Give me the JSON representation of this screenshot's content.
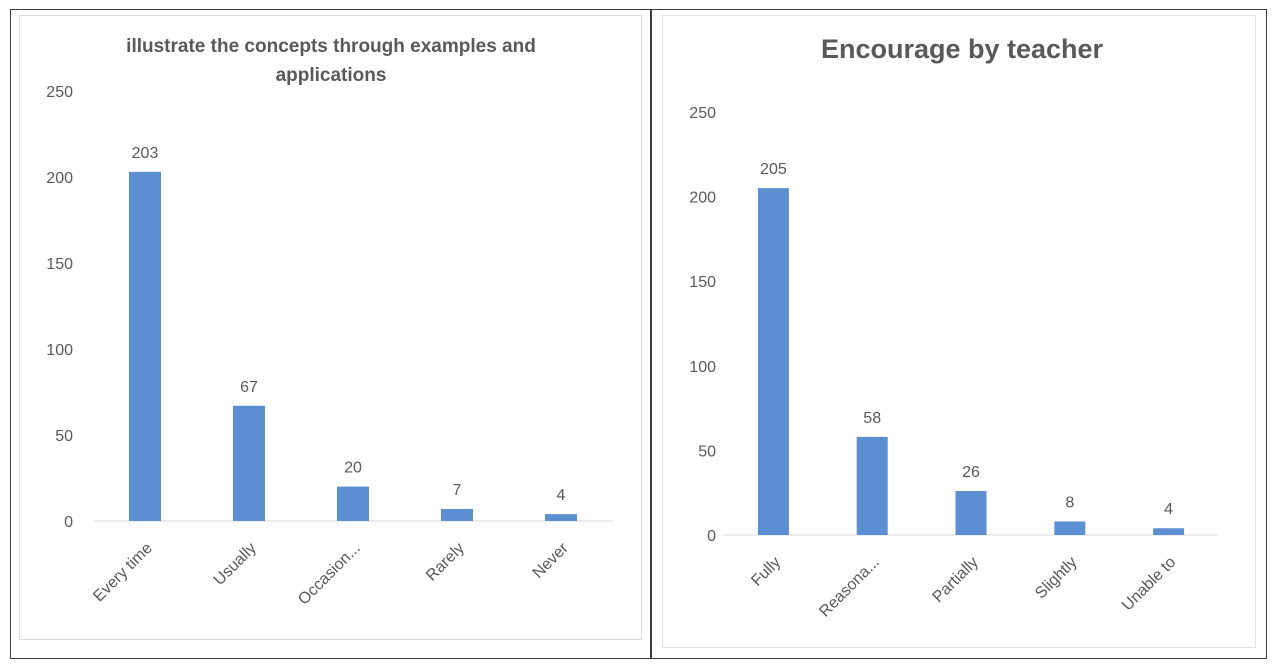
{
  "colors": {
    "bar": "#5b8fd2",
    "axis": "#d9d9d9",
    "text": "#595959"
  },
  "chart_data": [
    {
      "type": "bar",
      "title": "illustrate the concepts through examples and applications",
      "categories": [
        "Every time",
        "Usually",
        "Occasion...",
        "Rarely",
        "Never"
      ],
      "values": [
        203,
        67,
        20,
        7,
        4
      ],
      "yticks": [
        0,
        50,
        100,
        150,
        200,
        250
      ],
      "ylim": [
        0,
        250
      ],
      "grid": false,
      "legend": "none"
    },
    {
      "type": "bar",
      "title": "Encourage by teacher",
      "categories": [
        "Fully",
        "Reasona...",
        "Partially",
        "Slightly",
        "Unable to"
      ],
      "values": [
        205,
        58,
        26,
        8,
        4
      ],
      "yticks": [
        0,
        50,
        100,
        150,
        200,
        250
      ],
      "ylim": [
        0,
        250
      ],
      "grid": false,
      "legend": "none"
    }
  ]
}
